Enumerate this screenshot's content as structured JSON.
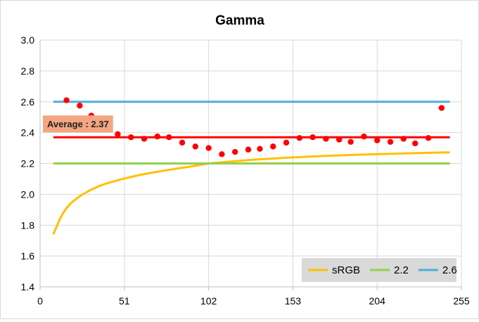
{
  "chart_data": {
    "type": "line",
    "title": "Gamma",
    "xlabel": "",
    "ylabel": "",
    "xlim": [
      0,
      255
    ],
    "ylim": [
      1.4,
      3.0
    ],
    "xticks": [
      0,
      51,
      102,
      153,
      204,
      255
    ],
    "yticks": [
      1.4,
      1.6,
      1.8,
      2.0,
      2.2,
      2.4,
      2.6,
      2.8,
      3.0
    ],
    "ytick_labels": [
      "1.4",
      "1.6",
      "1.8",
      "2.0",
      "2.2",
      "2.4",
      "2.6",
      "2.8",
      "3.0"
    ],
    "grid": true,
    "legend_position": "bottom-right",
    "series": [
      {
        "name": "sRGB",
        "color": "#ffc000",
        "x": [
          8,
          10,
          12,
          14,
          16,
          18,
          20,
          25,
          30,
          35,
          40,
          50,
          60,
          70,
          80,
          90,
          102,
          115,
          130,
          150,
          170,
          190,
          210,
          230,
          248
        ],
        "values": [
          1.74,
          1.79,
          1.84,
          1.88,
          1.91,
          1.935,
          1.955,
          1.995,
          2.025,
          2.05,
          2.07,
          2.1,
          2.125,
          2.145,
          2.162,
          2.178,
          2.2,
          2.212,
          2.225,
          2.238,
          2.248,
          2.256,
          2.262,
          2.268,
          2.272
        ]
      },
      {
        "name": "2.2",
        "color": "#92d050",
        "x": [
          8,
          248
        ],
        "values": [
          2.2,
          2.2
        ]
      },
      {
        "name": "2.6",
        "color": "#4faedb",
        "x": [
          8,
          248
        ],
        "values": [
          2.6,
          2.6
        ]
      },
      {
        "name": "",
        "color": "#ff0000",
        "x": [
          8,
          248
        ],
        "values": [
          2.37,
          2.37
        ]
      }
    ],
    "measured_points": {
      "color": "#ff0000",
      "x": [
        16,
        24,
        31,
        39,
        47,
        55,
        63,
        71,
        78,
        86,
        94,
        102,
        110,
        118,
        126,
        133,
        141,
        149,
        157,
        165,
        173,
        181,
        188,
        196,
        204,
        212,
        220,
        227,
        235,
        243
      ],
      "values": [
        2.61,
        2.575,
        2.51,
        2.45,
        2.39,
        2.37,
        2.36,
        2.375,
        2.37,
        2.335,
        2.31,
        2.3,
        2.26,
        2.275,
        2.29,
        2.295,
        2.31,
        2.335,
        2.365,
        2.37,
        2.36,
        2.355,
        2.34,
        2.375,
        2.35,
        2.34,
        2.36,
        2.33,
        2.365,
        2.56
      ]
    },
    "annotation": {
      "text": "Average : 2.37",
      "value": 2.37,
      "background": "#f4a582",
      "color": "#222222"
    }
  }
}
